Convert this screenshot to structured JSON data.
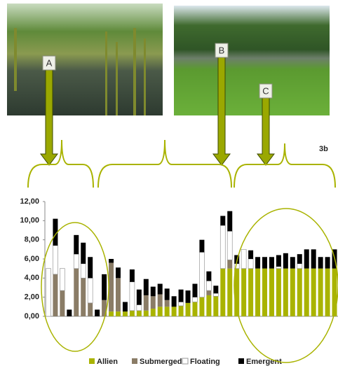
{
  "figure_label": "3b",
  "photo_labels": [
    "A",
    "B",
    "C"
  ],
  "chart_data": {
    "type": "stacked-bar",
    "ylim": [
      0,
      12
    ],
    "yticks": [
      {
        "value": 0,
        "label": "0,00"
      },
      {
        "value": 2,
        "label": "2,00"
      },
      {
        "value": 4,
        "label": "4,00"
      },
      {
        "value": 6,
        "label": "6,00"
      },
      {
        "value": 8,
        "label": "8,00"
      },
      {
        "value": 10,
        "label": "10,00"
      },
      {
        "value": 12,
        "label": "12,00"
      }
    ],
    "series": [
      {
        "name": "Allien",
        "color": "#a9b300",
        "values": [
          0,
          0,
          0,
          0,
          0,
          0,
          0,
          0,
          0,
          0.5,
          0.5,
          0.5,
          0.6,
          0.6,
          0.6,
          0.8,
          1,
          1,
          1,
          1.1,
          1.4,
          1.5,
          2,
          2.2,
          2.1,
          5,
          5,
          5,
          5,
          5,
          5,
          5,
          5,
          5,
          5,
          5,
          5,
          5,
          5,
          5,
          5,
          5
        ]
      },
      {
        "name": "Submerged",
        "color": "#8a7c66",
        "values": [
          0,
          4.4,
          2.7,
          0,
          5,
          4,
          1.4,
          0,
          1.7,
          5.1,
          3.5,
          0,
          0,
          0,
          1.6,
          1.3,
          1.3,
          0.7,
          0,
          0,
          0,
          0,
          0,
          0.5,
          0,
          0,
          0.9,
          0,
          0,
          0,
          0,
          0,
          0,
          0,
          0,
          0,
          0,
          0,
          0,
          0,
          0,
          0
        ]
      },
      {
        "name": "Floating",
        "color": "#ffffff",
        "values": [
          5,
          3,
          2.3,
          0,
          1.5,
          1.5,
          2.6,
          0,
          0,
          0,
          0,
          0,
          3,
          0.6,
          0,
          0,
          0,
          0,
          0,
          0.4,
          0,
          0.5,
          4.7,
          1,
          0.3,
          4.5,
          3,
          0.5,
          2,
          1,
          0,
          0,
          0,
          0.2,
          0,
          0,
          0.5,
          0,
          0,
          0,
          0,
          0
        ]
      },
      {
        "name": "Emergent",
        "color": "#000000",
        "values": [
          0,
          2.8,
          0,
          0.7,
          2,
          2.2,
          2.2,
          0.7,
          2.7,
          0.4,
          1.1,
          1,
          1.3,
          1.6,
          1.7,
          1,
          1.1,
          1.2,
          1.1,
          1.3,
          1.3,
          1.4,
          1.3,
          1,
          0.8,
          1,
          2.1,
          0.9,
          0,
          0.9,
          1.2,
          1.2,
          1.2,
          1.2,
          1.6,
          1.2,
          1,
          2,
          2,
          1.2,
          1.2,
          2
        ]
      }
    ]
  }
}
